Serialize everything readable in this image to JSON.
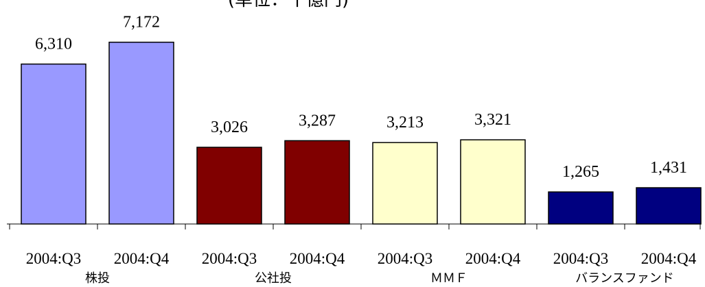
{
  "chart_data": {
    "type": "bar",
    "title": "(単位：十億円)",
    "categories": [
      "2004:Q3",
      "2004:Q4",
      "2004:Q3",
      "2004:Q4",
      "2004:Q3",
      "2004:Q4",
      "2004:Q3",
      "2004:Q4"
    ],
    "values": [
      6310,
      7172,
      3026,
      3287,
      3213,
      3321,
      1265,
      1431
    ],
    "value_labels": [
      "6,310",
      "7,172",
      "3,026",
      "3,287",
      "3,213",
      "3,321",
      "1,265",
      "1,431"
    ],
    "groups": [
      {
        "label": "株投",
        "color": "#9999ff"
      },
      {
        "label": "公社投",
        "color": "#800000"
      },
      {
        "label": "ＭＭＦ",
        "color": "#ffffcc"
      },
      {
        "label": "バランスファンド",
        "color": "#000080"
      }
    ],
    "ylim": [
      0,
      8000
    ]
  }
}
